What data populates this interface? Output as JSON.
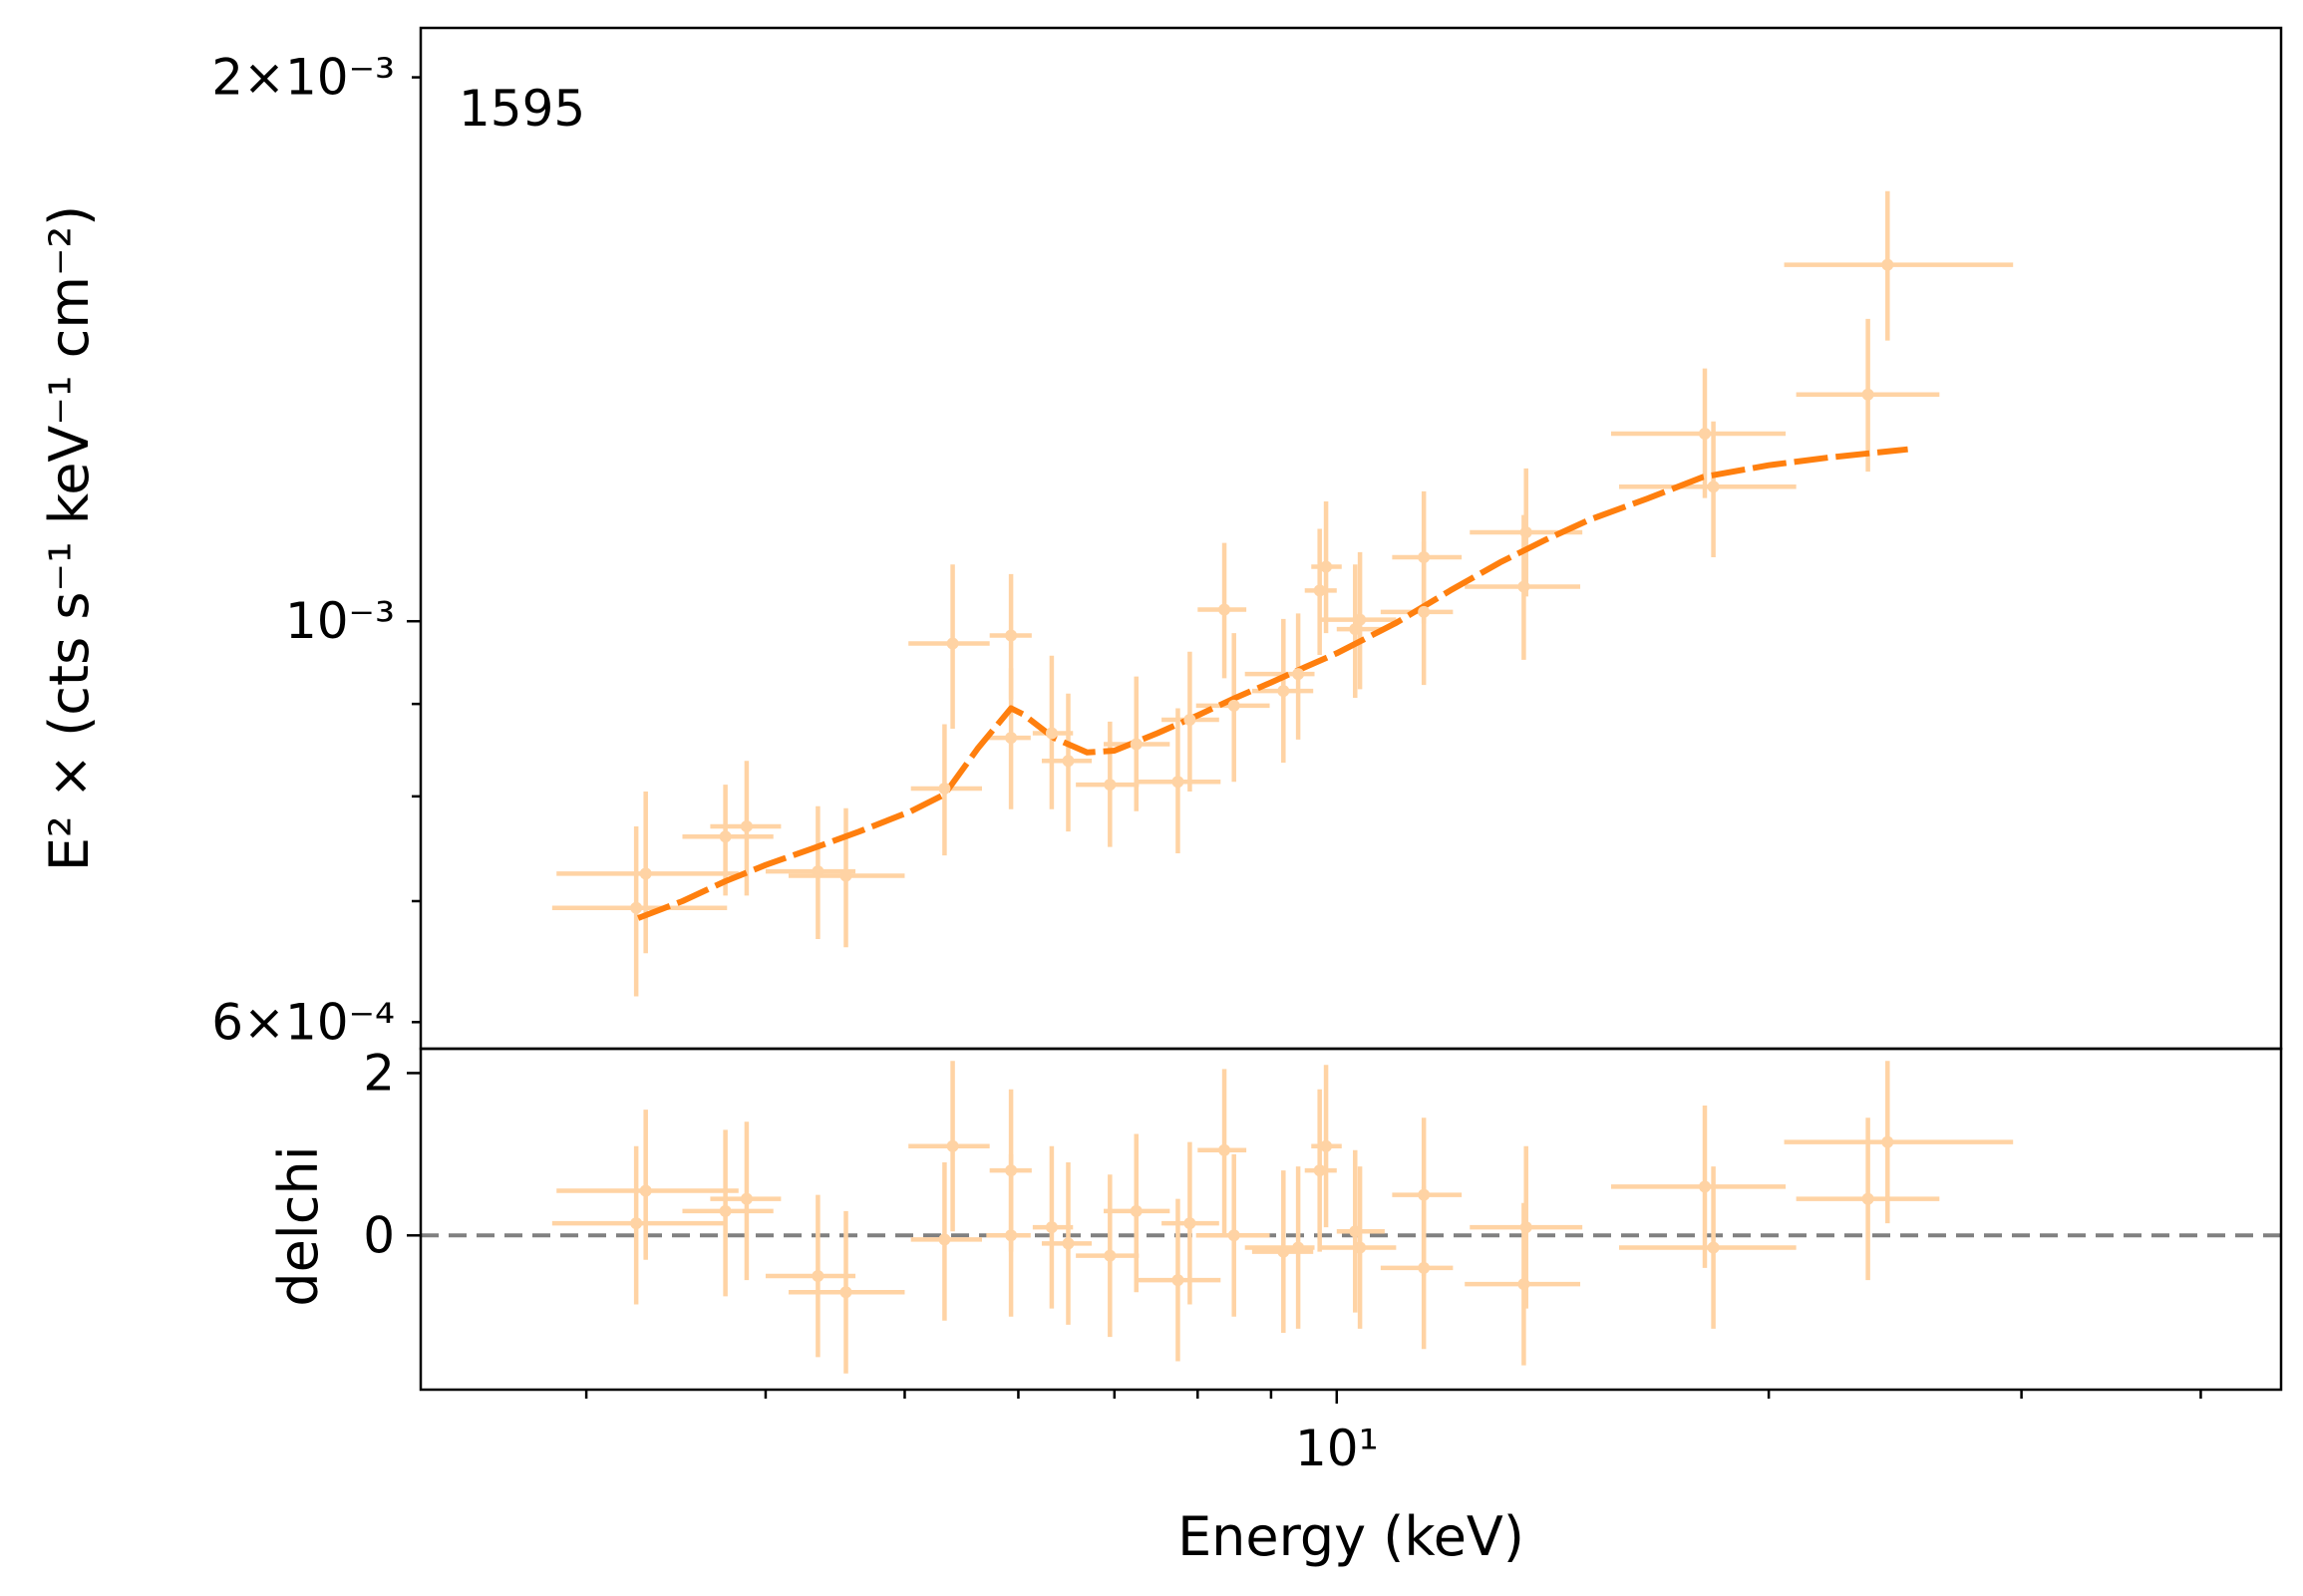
{
  "chart_data": [
    {
      "panel": "spectrum",
      "type": "scatter",
      "annotation": "1595",
      "ylabel": "E² ×  (cts s⁻¹ keV⁻¹ cm⁻²)",
      "xscale": "log",
      "yscale": "log",
      "xlim": [
        2.3,
        45.5
      ],
      "ylim": [
        0.00058,
        0.00213
      ],
      "y_tick_labels": [
        {
          "value": 0.002,
          "label": "2×10⁻³"
        },
        {
          "value": 0.001,
          "label": "10⁻³"
        },
        {
          "value": 0.0006,
          "label": "6×10⁻⁴"
        }
      ],
      "series": [
        {
          "kind": "data",
          "color": "#ffd3a4",
          "points": [
            {
              "x": 3.3,
              "xlo": 2.86,
              "xhi": 3.83,
              "y": 0.000725,
              "ylo": 0.000655,
              "yhi": 0.000805
            },
            {
              "x": 3.25,
              "xlo": 2.84,
              "xhi": 3.76,
              "y": 0.000694,
              "ylo": 0.00062,
              "yhi": 0.00077
            },
            {
              "x": 3.75,
              "xlo": 3.5,
              "xhi": 4.05,
              "y": 0.00076,
              "ylo": 0.000705,
              "yhi": 0.000812
            },
            {
              "x": 3.88,
              "xlo": 3.66,
              "xhi": 4.1,
              "y": 0.00077,
              "ylo": 0.000705,
              "yhi": 0.000837
            },
            {
              "x": 4.35,
              "xlo": 4.0,
              "xhi": 4.62,
              "y": 0.000727,
              "ylo": 0.000667,
              "yhi": 0.00079
            },
            {
              "x": 4.55,
              "xlo": 4.15,
              "xhi": 5.0,
              "y": 0.000723,
              "ylo": 0.00066,
              "yhi": 0.000788
            },
            {
              "x": 5.4,
              "xlo": 5.03,
              "xhi": 5.73,
              "y": 0.000972,
              "ylo": 0.000872,
              "yhi": 0.001075
            },
            {
              "x": 5.33,
              "xlo": 5.05,
              "xhi": 5.66,
              "y": 0.000808,
              "ylo": 0.000742,
              "yhi": 0.000877
            },
            {
              "x": 5.93,
              "xlo": 5.73,
              "xhi": 6.13,
              "y": 0.000982,
              "ylo": 0.000905,
              "yhi": 0.001062
            },
            {
              "x": 5.93,
              "xlo": 5.7,
              "xhi": 6.12,
              "y": 0.000862,
              "ylo": 0.000787,
              "yhi": 0.000942
            },
            {
              "x": 6.33,
              "xlo": 6.14,
              "xhi": 6.55,
              "y": 0.000867,
              "ylo": 0.000787,
              "yhi": 0.000957
            },
            {
              "x": 6.5,
              "xlo": 6.23,
              "xhi": 6.75,
              "y": 0.000837,
              "ylo": 0.000765,
              "yhi": 0.000912
            },
            {
              "x": 6.95,
              "xlo": 6.58,
              "xhi": 7.28,
              "y": 0.000812,
              "ylo": 0.00075,
              "yhi": 0.00088
            },
            {
              "x": 7.25,
              "xlo": 6.88,
              "xhi": 7.65,
              "y": 0.000855,
              "ylo": 0.000785,
              "yhi": 0.000932
            },
            {
              "x": 7.75,
              "xlo": 7.25,
              "xhi": 8.3,
              "y": 0.000815,
              "ylo": 0.000744,
              "yhi": 0.000895
            },
            {
              "x": 7.9,
              "xlo": 7.55,
              "xhi": 8.28,
              "y": 0.000882,
              "ylo": 0.000805,
              "yhi": 0.000962
            },
            {
              "x": 8.35,
              "xlo": 8.0,
              "xhi": 8.65,
              "y": 0.001015,
              "ylo": 0.00093,
              "yhi": 0.001105
            },
            {
              "x": 8.48,
              "xlo": 7.98,
              "xhi": 8.98,
              "y": 0.000898,
              "ylo": 0.000815,
              "yhi": 0.000985
            },
            {
              "x": 9.18,
              "xlo": 8.73,
              "xhi": 9.63,
              "y": 0.000915,
              "ylo": 0.000835,
              "yhi": 0.001003
            },
            {
              "x": 9.4,
              "xlo": 8.63,
              "xhi": 9.65,
              "y": 0.000935,
              "ylo": 0.00086,
              "yhi": 0.00101
            },
            {
              "x": 9.73,
              "xlo": 9.5,
              "xhi": 10.0,
              "y": 0.00104,
              "ylo": 0.000958,
              "yhi": 0.001125
            },
            {
              "x": 9.83,
              "xlo": 9.6,
              "xhi": 10.08,
              "y": 0.001072,
              "ylo": 0.000985,
              "yhi": 0.001165
            },
            {
              "x": 10.3,
              "xlo": 10.0,
              "xhi": 10.8,
              "y": 0.00099,
              "ylo": 0.000907,
              "yhi": 0.001075
            },
            {
              "x": 10.38,
              "xlo": 9.73,
              "xhi": 11.0,
              "y": 0.001002,
              "ylo": 0.000917,
              "yhi": 0.001092
            },
            {
              "x": 11.5,
              "xlo": 10.93,
              "xhi": 12.22,
              "y": 0.001085,
              "ylo": 0.000997,
              "yhi": 0.00118
            },
            {
              "x": 11.5,
              "xlo": 10.73,
              "xhi": 12.05,
              "y": 0.001012,
              "ylo": 0.000922,
              "yhi": 0.001107
            },
            {
              "x": 13.5,
              "xlo": 12.28,
              "xhi": 14.78,
              "y": 0.001045,
              "ylo": 0.000952,
              "yhi": 0.001145
            },
            {
              "x": 13.55,
              "xlo": 12.38,
              "xhi": 14.83,
              "y": 0.00112,
              "ylo": 0.001032,
              "yhi": 0.001215
            },
            {
              "x": 18.05,
              "xlo": 15.53,
              "xhi": 20.55,
              "y": 0.00127,
              "ylo": 0.00117,
              "yhi": 0.00138
            },
            {
              "x": 18.3,
              "xlo": 15.73,
              "xhi": 20.9,
              "y": 0.001187,
              "ylo": 0.001085,
              "yhi": 0.00129
            },
            {
              "x": 23.45,
              "xlo": 20.9,
              "xhi": 26.3,
              "y": 0.001335,
              "ylo": 0.00121,
              "yhi": 0.00147
            },
            {
              "x": 24.2,
              "xlo": 20.5,
              "xhi": 29.6,
              "y": 0.001575,
              "ylo": 0.00143,
              "yhi": 0.00173
            }
          ]
        },
        {
          "kind": "model",
          "color": "#ff7f0e",
          "x": [
            3.26,
            3.5,
            3.75,
            4.0,
            4.3,
            4.65,
            5.05,
            5.33,
            5.62,
            5.93,
            6.05,
            6.35,
            6.7,
            7.0,
            7.5,
            8.0,
            8.5,
            9.0,
            9.5,
            10.0,
            11.0,
            12.0,
            13.0,
            14.0,
            15.0,
            16.5,
            18.0,
            20.0,
            22.0,
            25.0
          ],
          "y": [
            0.000685,
            0.0007,
            0.000718,
            0.000733,
            0.000748,
            0.000765,
            0.000785,
            0.000802,
            0.00085,
            0.000895,
            0.000888,
            0.000862,
            0.000846,
            0.000848,
            0.000867,
            0.000887,
            0.000907,
            0.000925,
            0.000943,
            0.00096,
            0.000998,
            0.00104,
            0.001078,
            0.00111,
            0.001138,
            0.00117,
            0.001202,
            0.00122,
            0.001232,
            0.001245
          ]
        }
      ]
    },
    {
      "panel": "residuals",
      "type": "scatter",
      "xlabel": "Energy (keV)",
      "ylabel": "delchi",
      "xscale": "log",
      "xlim": [
        2.3,
        45.5
      ],
      "ylim": [
        -1.9,
        2.3
      ],
      "x_tick_labels": [
        {
          "value": 10,
          "label": "10¹"
        }
      ],
      "y_tick_labels": [
        {
          "value": 2,
          "label": "2"
        },
        {
          "value": 0,
          "label": "0"
        }
      ],
      "zero_line_color": "#808080",
      "series": [
        {
          "kind": "data",
          "color": "#ffd3a4",
          "points": [
            {
              "x": 3.3,
              "xlo": 2.86,
              "xhi": 3.83,
              "y": 0.55,
              "ylo": -0.3,
              "yhi": 1.55
            },
            {
              "x": 3.25,
              "xlo": 2.84,
              "xhi": 3.76,
              "y": 0.15,
              "ylo": -0.85,
              "yhi": 1.1
            },
            {
              "x": 3.75,
              "xlo": 3.5,
              "xhi": 4.05,
              "y": 0.3,
              "ylo": -0.75,
              "yhi": 1.3
            },
            {
              "x": 3.88,
              "xlo": 3.66,
              "xhi": 4.1,
              "y": 0.45,
              "ylo": -0.55,
              "yhi": 1.4
            },
            {
              "x": 4.35,
              "xlo": 4.0,
              "xhi": 4.62,
              "y": -0.5,
              "ylo": -1.5,
              "yhi": 0.5
            },
            {
              "x": 4.55,
              "xlo": 4.15,
              "xhi": 5.0,
              "y": -0.7,
              "ylo": -1.7,
              "yhi": 0.3
            },
            {
              "x": 5.4,
              "xlo": 5.03,
              "xhi": 5.73,
              "y": 1.1,
              "ylo": 0.05,
              "yhi": 2.15
            },
            {
              "x": 5.33,
              "xlo": 5.05,
              "xhi": 5.66,
              "y": -0.05,
              "ylo": -1.05,
              "yhi": 0.9
            },
            {
              "x": 5.93,
              "xlo": 5.73,
              "xhi": 6.13,
              "y": 0.8,
              "ylo": -0.2,
              "yhi": 1.8
            },
            {
              "x": 5.93,
              "xlo": 5.7,
              "xhi": 6.12,
              "y": 0.0,
              "ylo": -1.0,
              "yhi": 1.0
            },
            {
              "x": 6.33,
              "xlo": 6.14,
              "xhi": 6.55,
              "y": 0.1,
              "ylo": -0.9,
              "yhi": 1.1
            },
            {
              "x": 6.5,
              "xlo": 6.23,
              "xhi": 6.75,
              "y": -0.1,
              "ylo": -1.1,
              "yhi": 0.9
            },
            {
              "x": 6.95,
              "xlo": 6.58,
              "xhi": 7.28,
              "y": -0.25,
              "ylo": -1.25,
              "yhi": 0.75
            },
            {
              "x": 7.25,
              "xlo": 6.88,
              "xhi": 7.65,
              "y": 0.3,
              "ylo": -0.7,
              "yhi": 1.25
            },
            {
              "x": 7.75,
              "xlo": 7.25,
              "xhi": 8.3,
              "y": -0.55,
              "ylo": -1.55,
              "yhi": 0.45
            },
            {
              "x": 7.9,
              "xlo": 7.55,
              "xhi": 8.28,
              "y": 0.15,
              "ylo": -0.85,
              "yhi": 1.15
            },
            {
              "x": 8.35,
              "xlo": 8.0,
              "xhi": 8.65,
              "y": 1.05,
              "ylo": 0.0,
              "yhi": 2.05
            },
            {
              "x": 8.48,
              "xlo": 7.98,
              "xhi": 8.98,
              "y": 0.0,
              "ylo": -1.0,
              "yhi": 1.0
            },
            {
              "x": 9.18,
              "xlo": 8.73,
              "xhi": 9.63,
              "y": -0.2,
              "ylo": -1.2,
              "yhi": 0.8
            },
            {
              "x": 9.4,
              "xlo": 8.63,
              "xhi": 9.65,
              "y": -0.15,
              "ylo": -1.15,
              "yhi": 0.85
            },
            {
              "x": 9.73,
              "xlo": 9.5,
              "xhi": 10.0,
              "y": 0.8,
              "ylo": -0.2,
              "yhi": 1.8
            },
            {
              "x": 9.83,
              "xlo": 9.6,
              "xhi": 10.08,
              "y": 1.1,
              "ylo": 0.1,
              "yhi": 2.1
            },
            {
              "x": 10.3,
              "xlo": 10.0,
              "xhi": 10.8,
              "y": 0.05,
              "ylo": -0.95,
              "yhi": 1.05
            },
            {
              "x": 10.38,
              "xlo": 9.73,
              "xhi": 11.0,
              "y": -0.15,
              "ylo": -1.15,
              "yhi": 0.85
            },
            {
              "x": 11.5,
              "xlo": 10.93,
              "xhi": 12.22,
              "y": 0.5,
              "ylo": -0.5,
              "yhi": 1.45
            },
            {
              "x": 11.5,
              "xlo": 10.73,
              "xhi": 12.05,
              "y": -0.4,
              "ylo": -1.4,
              "yhi": 0.6
            },
            {
              "x": 13.5,
              "xlo": 12.28,
              "xhi": 14.78,
              "y": -0.6,
              "ylo": -1.6,
              "yhi": 0.4
            },
            {
              "x": 13.55,
              "xlo": 12.38,
              "xhi": 14.83,
              "y": 0.1,
              "ylo": -0.9,
              "yhi": 1.1
            },
            {
              "x": 18.05,
              "xlo": 15.53,
              "xhi": 20.55,
              "y": 0.6,
              "ylo": -0.4,
              "yhi": 1.6
            },
            {
              "x": 18.3,
              "xlo": 15.73,
              "xhi": 20.9,
              "y": -0.15,
              "ylo": -1.15,
              "yhi": 0.85
            },
            {
              "x": 23.45,
              "xlo": 20.9,
              "xhi": 26.3,
              "y": 0.45,
              "ylo": -0.55,
              "yhi": 1.45
            },
            {
              "x": 24.2,
              "xlo": 20.5,
              "xhi": 29.6,
              "y": 1.15,
              "ylo": 0.15,
              "yhi": 2.15
            }
          ]
        }
      ]
    }
  ]
}
